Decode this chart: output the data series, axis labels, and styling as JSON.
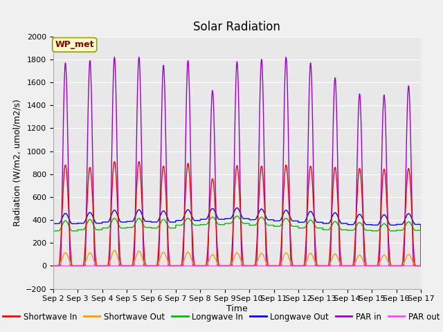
{
  "title": "Solar Radiation",
  "xlabel": "Time",
  "ylabel": "Radiation (W/m2, umol/m2/s)",
  "ylim": [
    -200,
    2000
  ],
  "yticks": [
    -200,
    0,
    200,
    400,
    600,
    800,
    1000,
    1200,
    1400,
    1600,
    1800,
    2000
  ],
  "n_days": 15,
  "points_per_day": 288,
  "xtick_labels": [
    "Sep 2",
    "Sep 3",
    "Sep 4",
    "Sep 5",
    "Sep 6",
    "Sep 7",
    "Sep 8",
    "Sep 9",
    "Sep 10",
    "Sep 11",
    "Sep 12",
    "Sep 13",
    "Sep 14",
    "Sep 15",
    "Sep 16",
    "Sep 17"
  ],
  "station_label": "WP_met",
  "bg_color": "#e8e8e8",
  "grid_color": "#ffffff",
  "fig_bg_color": "#f0f0f0",
  "title_fontsize": 12,
  "label_fontsize": 9,
  "tick_fontsize": 8,
  "day_peaks_sw_in": [
    880,
    860,
    910,
    910,
    870,
    895,
    760,
    875,
    870,
    880,
    870,
    860,
    850,
    845,
    850
  ],
  "day_peaks_sw_out": [
    115,
    115,
    135,
    130,
    120,
    120,
    100,
    115,
    110,
    115,
    110,
    105,
    95,
    95,
    100
  ],
  "day_peaks_par_in": [
    1770,
    1790,
    1820,
    1820,
    1750,
    1790,
    1530,
    1780,
    1800,
    1820,
    1770,
    1640,
    1500,
    1490,
    1570
  ],
  "day_bases_lw_in": [
    305,
    315,
    330,
    335,
    330,
    355,
    360,
    370,
    355,
    345,
    330,
    315,
    310,
    305,
    310
  ],
  "day_peaks_lw_in": [
    395,
    405,
    415,
    415,
    405,
    415,
    425,
    435,
    425,
    415,
    400,
    388,
    378,
    368,
    385
  ],
  "day_bases_lw_out": [
    368,
    372,
    382,
    388,
    382,
    396,
    406,
    412,
    402,
    392,
    380,
    370,
    360,
    356,
    362
  ],
  "day_peaks_lw_out": [
    458,
    466,
    486,
    490,
    480,
    490,
    500,
    506,
    496,
    486,
    476,
    464,
    450,
    446,
    456
  ],
  "series_colors": {
    "Shortwave In": "#ff0000",
    "Shortwave Out": "#ff9900",
    "Longwave In": "#00bb00",
    "Longwave Out": "#0000ff",
    "PAR in": "#9900cc",
    "PAR out": "#ff44ff"
  }
}
